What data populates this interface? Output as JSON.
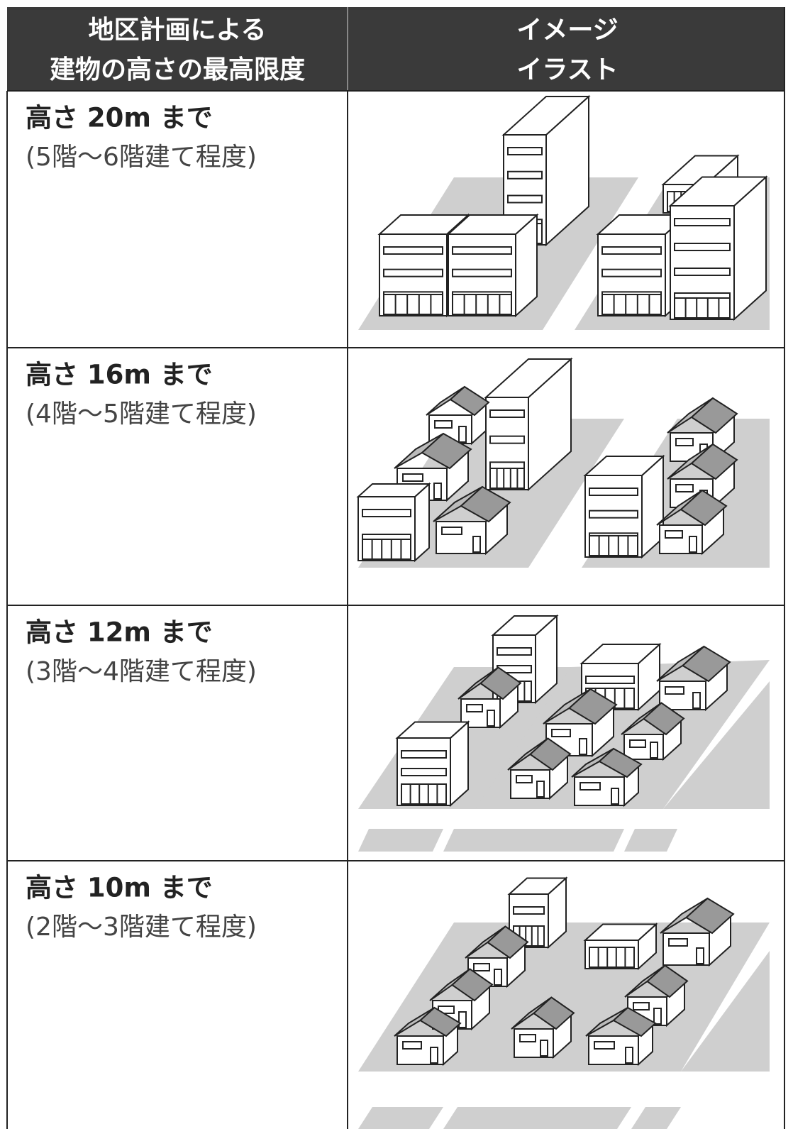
{
  "header": {
    "left": [
      "地区計画による",
      "建物の高さの最高限度"
    ],
    "right": [
      "イメージ",
      "イラスト"
    ]
  },
  "rows": [
    {
      "height": "高さ 20m まで",
      "floors": "(5階～6階建て程度)"
    },
    {
      "height": "高さ 16m まで",
      "floors": "(4階～5階建て程度)"
    },
    {
      "height": "高さ 12m まで",
      "floors": "(3階～4階建て程度)"
    },
    {
      "height": "高さ 10m まで",
      "floors": "(2階～3階建て程度)"
    }
  ]
}
